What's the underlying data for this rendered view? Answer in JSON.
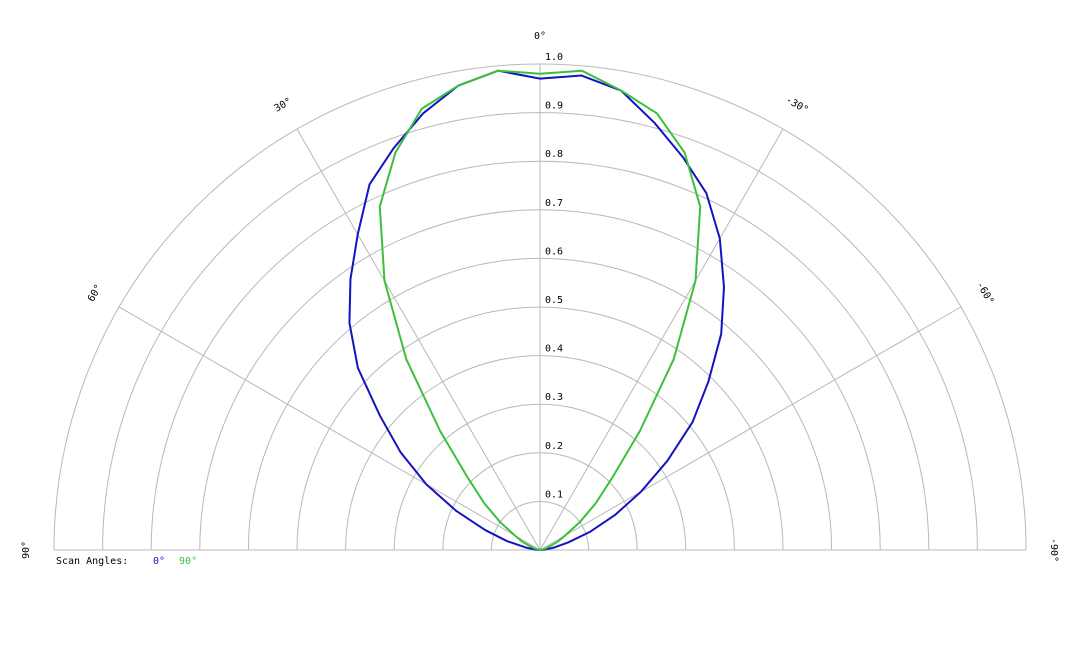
{
  "chart_data": {
    "type": "polar",
    "x": [
      90,
      85,
      80,
      75,
      70,
      65,
      60,
      55,
      50,
      45,
      40,
      35,
      30,
      25,
      20,
      15,
      10,
      5,
      0,
      -5,
      -10,
      -15,
      -20,
      -25,
      -30,
      -35,
      -40,
      -45,
      -50,
      -55,
      -60,
      -65,
      -70,
      -75,
      -80,
      -85,
      -90
    ],
    "series": [
      {
        "name": "0°",
        "color": "#1414c0",
        "values": [
          0,
          0.01,
          0.03,
          0.07,
          0.12,
          0.19,
          0.27,
          0.35,
          0.43,
          0.53,
          0.61,
          0.68,
          0.75,
          0.83,
          0.88,
          0.93,
          0.97,
          0.99,
          0.97,
          0.98,
          0.96,
          0.91,
          0.86,
          0.81,
          0.74,
          0.66,
          0.58,
          0.49,
          0.41,
          0.32,
          0.24,
          0.17,
          0.11,
          0.06,
          0.03,
          0.01,
          0
        ]
      },
      {
        "name": "90°",
        "color": "#3cc03c",
        "values": [
          0,
          0.003,
          0.005,
          0.01,
          0.02,
          0.04,
          0.06,
          0.1,
          0.15,
          0.21,
          0.32,
          0.48,
          0.64,
          0.78,
          0.87,
          0.94,
          0.97,
          0.99,
          0.98,
          0.99,
          0.96,
          0.93,
          0.87,
          0.78,
          0.64,
          0.48,
          0.32,
          0.21,
          0.15,
          0.1,
          0.06,
          0.04,
          0.02,
          0.01,
          0.005,
          0.003,
          0
        ]
      }
    ],
    "rlim": [
      0,
      1
    ],
    "rticks": [
      0.1,
      0.2,
      0.3,
      0.4,
      0.5,
      0.6,
      0.7,
      0.8,
      0.9,
      {
        "value": 1,
        "label": "1.0"
      }
    ],
    "xlim": [
      90,
      -90
    ],
    "xticks": [
      {
        "value": 90,
        "label": "90°"
      },
      {
        "value": 60,
        "label": "60°"
      },
      {
        "value": 30,
        "label": "30°"
      },
      {
        "value": 0,
        "label": "0°"
      },
      {
        "value": -30,
        "label": "-30°"
      },
      {
        "value": -60,
        "label": "-60°"
      },
      {
        "value": -90,
        "label": "-90°"
      }
    ],
    "legend_title": "Scan Angles:",
    "grid": true
  }
}
